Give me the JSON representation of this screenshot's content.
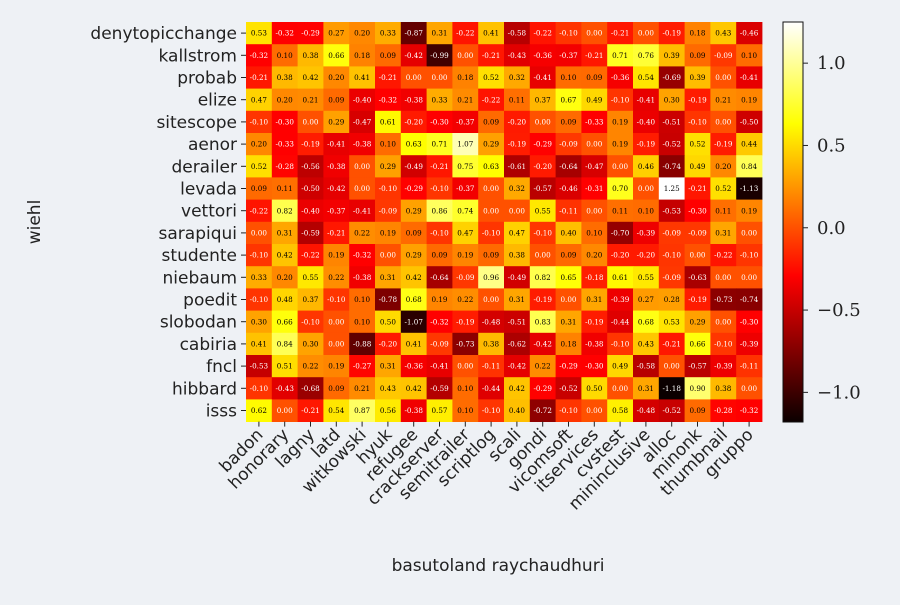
{
  "chart_data": {
    "type": "heatmap",
    "xlabel": "basutoland raychaudhuri",
    "ylabel": "wiehl",
    "colormap": "hot",
    "vmin": -1.18,
    "vmax": 1.25,
    "colorbar_ticks": [
      -1.0,
      -0.5,
      0.0,
      0.5,
      1.0
    ],
    "colorbar_tick_labels": [
      "−1.0",
      "−0.5",
      "0.0",
      "0.5",
      "1.0"
    ],
    "x_categories": [
      "badon",
      "honorary",
      "lagny",
      "latd",
      "witkowski",
      "hyuk",
      "refugee",
      "crackserver",
      "semitrailer",
      "scriptlog",
      "scali",
      "gondi",
      "vicomsoft",
      "itservices",
      "cvstest",
      "mininclusive",
      "alloc",
      "minonk",
      "thumbnail",
      "gruppo"
    ],
    "y_categories": [
      "denytopicchange",
      "kallstrom",
      "probab",
      "elize",
      "sitescope",
      "aenor",
      "derailer",
      "levada",
      "vettori",
      "sarapiqui",
      "studente",
      "niebaum",
      "poedit",
      "slobodan",
      "cabiria",
      "fncl",
      "hibbard",
      "isss"
    ],
    "values": [
      [
        0.53,
        -0.32,
        -0.29,
        0.27,
        0.2,
        0.33,
        -0.87,
        0.31,
        -0.22,
        0.41,
        -0.58,
        -0.22,
        -0.1,
        0.0,
        -0.21,
        0.0,
        -0.19,
        0.18,
        0.43,
        -0.46
      ],
      [
        -0.32,
        0.1,
        0.38,
        0.66,
        0.18,
        0.09,
        -0.42,
        -0.99,
        0.0,
        -0.21,
        -0.43,
        -0.36,
        -0.37,
        -0.21,
        0.71,
        0.76,
        0.39,
        0.09,
        -0.09,
        0.1
      ],
      [
        -0.21,
        0.38,
        0.42,
        0.2,
        0.41,
        -0.21,
        0.0,
        0.0,
        0.18,
        0.52,
        0.32,
        -0.41,
        0.1,
        0.09,
        -0.36,
        0.54,
        -0.69,
        0.39,
        0.0,
        -0.41
      ],
      [
        0.47,
        0.2,
        0.21,
        0.09,
        -0.4,
        -0.32,
        -0.38,
        0.33,
        0.21,
        -0.22,
        0.11,
        0.37,
        0.67,
        0.49,
        -0.1,
        -0.41,
        0.3,
        -0.19,
        0.21,
        0.19
      ],
      [
        -0.1,
        -0.3,
        0.0,
        0.29,
        -0.47,
        0.61,
        -0.2,
        -0.3,
        -0.37,
        0.09,
        -0.2,
        0.0,
        0.09,
        -0.33,
        0.19,
        -0.4,
        -0.51,
        -0.1,
        0.0,
        -0.5
      ],
      [
        0.2,
        -0.33,
        -0.19,
        -0.41,
        -0.38,
        0.1,
        0.63,
        0.71,
        1.07,
        0.29,
        -0.19,
        -0.29,
        -0.09,
        0.0,
        0.19,
        -0.19,
        -0.52,
        0.52,
        -0.19,
        0.44
      ],
      [
        0.52,
        -0.28,
        -0.56,
        -0.38,
        0.0,
        0.29,
        -0.49,
        -0.21,
        0.75,
        0.63,
        -0.61,
        -0.2,
        -0.64,
        -0.47,
        0.0,
        0.46,
        -0.74,
        0.49,
        0.2,
        0.84
      ],
      [
        0.09,
        0.11,
        -0.5,
        -0.42,
        0.0,
        -0.1,
        -0.29,
        -0.1,
        -0.37,
        0.0,
        0.32,
        -0.57,
        -0.46,
        -0.31,
        0.7,
        0.0,
        1.25,
        -0.21,
        0.52,
        -1.13
      ],
      [
        -0.22,
        0.82,
        -0.4,
        -0.37,
        -0.41,
        -0.09,
        0.29,
        0.86,
        0.74,
        0.0,
        0.0,
        0.55,
        -0.11,
        0.0,
        0.11,
        0.1,
        -0.53,
        -0.3,
        0.11,
        0.19
      ],
      [
        0.0,
        0.31,
        -0.59,
        -0.21,
        0.22,
        0.19,
        0.09,
        -0.1,
        0.47,
        -0.1,
        0.47,
        -0.1,
        0.4,
        0.1,
        -0.7,
        -0.39,
        -0.09,
        -0.09,
        0.31,
        0.0
      ],
      [
        -0.1,
        0.42,
        -0.22,
        0.19,
        -0.32,
        0.0,
        0.29,
        0.09,
        0.19,
        0.09,
        0.38,
        0.0,
        0.09,
        0.2,
        -0.2,
        -0.2,
        -0.1,
        0.0,
        -0.22,
        -0.1
      ],
      [
        0.33,
        0.2,
        0.55,
        0.22,
        -0.38,
        0.31,
        0.42,
        -0.64,
        -0.09,
        0.96,
        -0.49,
        0.82,
        0.65,
        -0.18,
        0.61,
        0.55,
        -0.09,
        -0.63,
        0.0,
        0.0
      ],
      [
        -0.1,
        0.48,
        0.37,
        -0.1,
        0.1,
        -0.78,
        0.68,
        0.19,
        0.22,
        0.0,
        0.31,
        -0.19,
        0.0,
        0.31,
        -0.39,
        0.27,
        0.28,
        -0.19,
        -0.73,
        -0.74
      ],
      [
        0.3,
        0.66,
        -0.1,
        0.0,
        0.1,
        0.5,
        -1.07,
        -0.32,
        -0.19,
        -0.48,
        -0.51,
        0.83,
        0.31,
        -0.19,
        -0.44,
        0.68,
        0.53,
        0.29,
        0.0,
        -0.3
      ],
      [
        0.41,
        0.84,
        0.3,
        0.0,
        -0.88,
        -0.2,
        0.41,
        -0.09,
        -0.73,
        0.38,
        -0.62,
        -0.42,
        0.18,
        -0.38,
        -0.1,
        0.43,
        -0.21,
        0.66,
        -0.1,
        -0.39
      ],
      [
        -0.53,
        0.51,
        0.22,
        0.19,
        -0.27,
        0.31,
        -0.36,
        -0.41,
        0.0,
        -0.11,
        -0.42,
        0.22,
        -0.29,
        -0.3,
        0.49,
        -0.58,
        0.0,
        -0.57,
        -0.39,
        -0.11
      ],
      [
        -0.1,
        -0.43,
        -0.68,
        0.09,
        0.21,
        0.43,
        0.42,
        -0.59,
        0.1,
        -0.44,
        0.42,
        -0.29,
        -0.52,
        0.5,
        0.0,
        0.31,
        -1.18,
        0.9,
        0.38,
        0.0
      ],
      [
        0.62,
        0.0,
        -0.21,
        0.54,
        0.87,
        0.56,
        -0.38,
        0.57,
        0.1,
        -0.1,
        0.4,
        -0.72,
        -0.1,
        0.0,
        0.58,
        -0.48,
        -0.52,
        0.09,
        -0.28,
        -0.32
      ]
    ]
  }
}
